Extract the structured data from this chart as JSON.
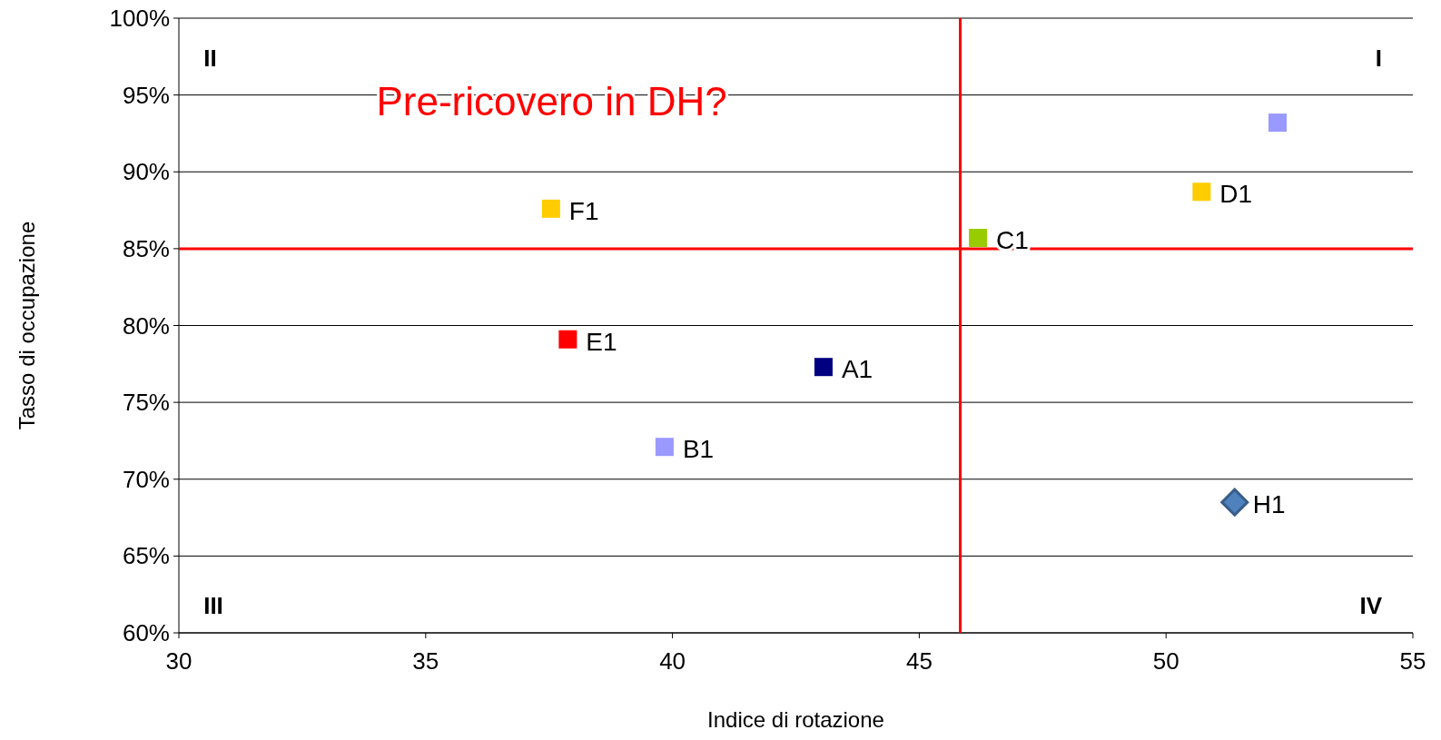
{
  "chart_data": {
    "type": "scatter",
    "xlabel": "Indice di rotazione",
    "ylabel": "Tasso di occupazione",
    "xlim": [
      30,
      55
    ],
    "xticks": [
      30,
      35,
      40,
      45,
      50,
      55
    ],
    "ylim": [
      60,
      100
    ],
    "yticks": [
      {
        "value": 60,
        "label": "60%"
      },
      {
        "value": 65,
        "label": "65%"
      },
      {
        "value": 70,
        "label": "70%"
      },
      {
        "value": 75,
        "label": "75%"
      },
      {
        "value": 80,
        "label": "80%"
      },
      {
        "value": 85,
        "label": "85%"
      },
      {
        "value": 90,
        "label": "90%"
      },
      {
        "value": 95,
        "label": "95%"
      },
      {
        "value": 100,
        "label": "100%"
      }
    ],
    "grid": "y",
    "marker": "square",
    "series": [
      {
        "name": "A1",
        "color": "#000080",
        "x": [
          43.06
        ],
        "values": [
          77.3
        ]
      },
      {
        "name": "B1",
        "color": "#9999ff",
        "x": [
          39.84
        ],
        "values": [
          72.1
        ]
      },
      {
        "name": "C1",
        "color": "#99cc00",
        "x": [
          46.19
        ],
        "values": [
          85.7
        ]
      },
      {
        "name": "D1",
        "color": "#ffcc00",
        "x": [
          50.72
        ],
        "values": [
          88.7
        ]
      },
      {
        "name": "E1",
        "color": "#ff0000",
        "x": [
          37.88
        ],
        "values": [
          79.1
        ]
      },
      {
        "name": "F1",
        "color": "#ffcc00",
        "x": [
          37.54
        ],
        "values": [
          87.6
        ]
      },
      {
        "color": "#9999ff",
        "x": [
          52.26
        ],
        "values": [
          93.2
        ]
      },
      {
        "name": "H1",
        "color": "#4f81bd",
        "x": [
          51.39
        ],
        "values": [
          68.5
        ],
        "marker": "diamond"
      }
    ],
    "ref_lines": [
      {
        "axis": "x",
        "value": 45.83,
        "color": "#ff0000"
      },
      {
        "axis": "y",
        "value": 85,
        "color": "#ff0000"
      }
    ],
    "annotations": [
      "Pre-ricovero in DH?",
      "I",
      "II",
      "III",
      "IV"
    ]
  }
}
